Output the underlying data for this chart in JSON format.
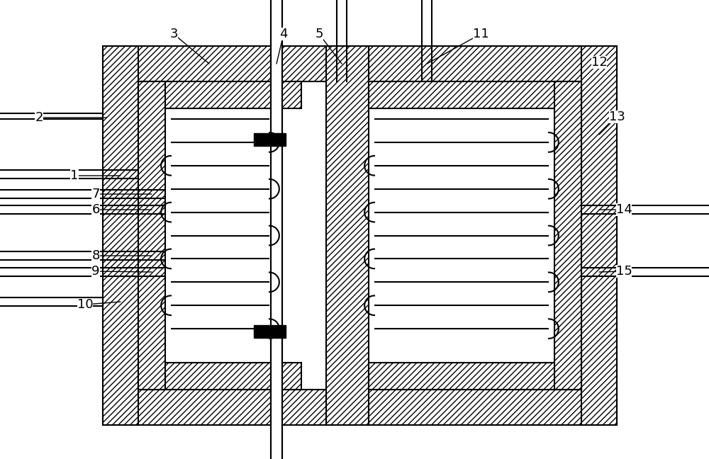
{
  "bg_color": "#ffffff",
  "fig_width": 10.0,
  "fig_height": 6.48,
  "line_color": "#000000"
}
